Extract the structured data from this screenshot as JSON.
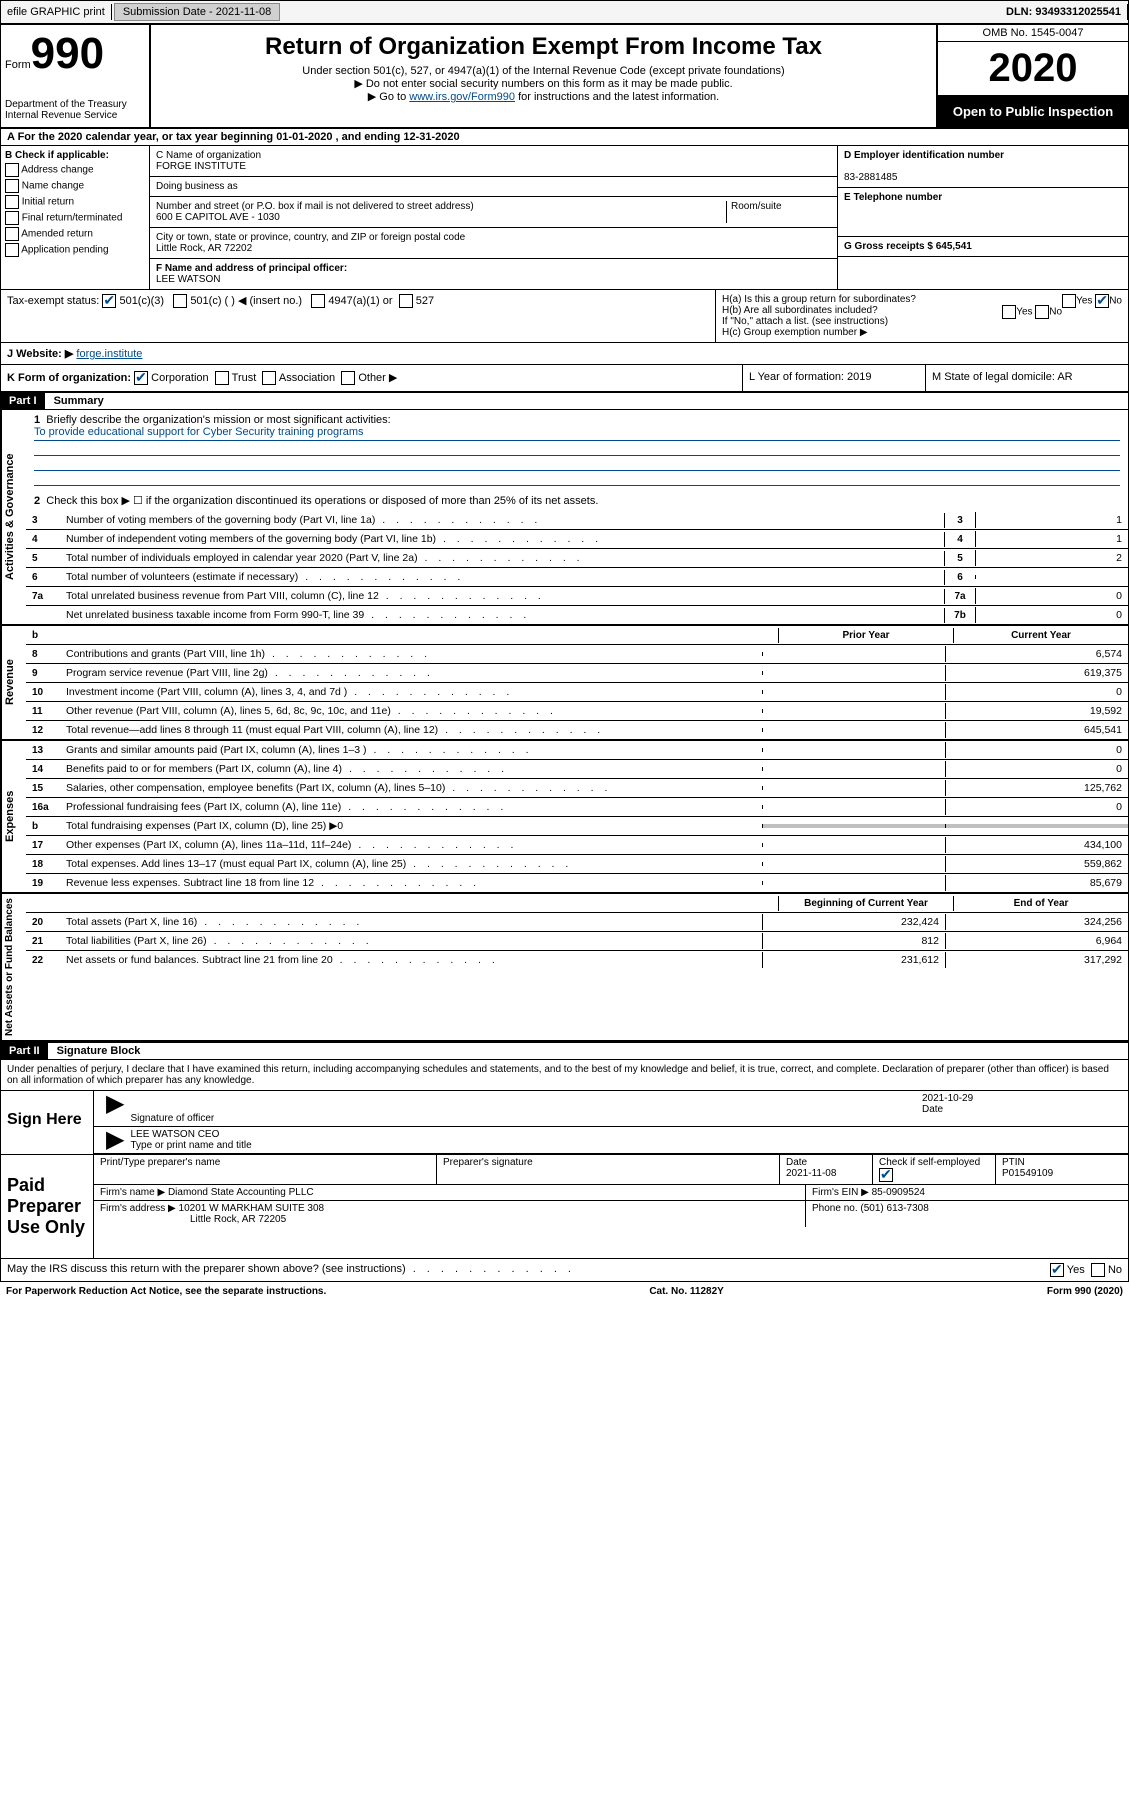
{
  "topbar": {
    "efile": "efile GRAPHIC print",
    "submission_label": "Submission Date - 2021-11-08",
    "dln_label": "DLN: 93493312025541"
  },
  "header": {
    "form_prefix": "Form",
    "form_num": "990",
    "title": "Return of Organization Exempt From Income Tax",
    "subtitle1": "Under section 501(c), 527, or 4947(a)(1) of the Internal Revenue Code (except private foundations)",
    "subtitle2": "▶ Do not enter social security numbers on this form as it may be made public.",
    "subtitle3_pre": "▶ Go to ",
    "subtitle3_link": "www.irs.gov/Form990",
    "subtitle3_post": " for instructions and the latest information.",
    "dept": "Department of the Treasury",
    "irs": "Internal Revenue Service",
    "omb": "OMB No. 1545-0047",
    "year": "2020",
    "open_public": "Open to Public Inspection"
  },
  "lineA": "A   For the 2020 calendar year, or tax year beginning 01-01-2020    , and ending 12-31-2020",
  "boxB": {
    "label": "B Check if applicable:",
    "address_change": "Address change",
    "name_change": "Name change",
    "initial_return": "Initial return",
    "final_return": "Final return/terminated",
    "amended": "Amended return",
    "pending": "Application pending"
  },
  "boxC": {
    "name_label": "C Name of organization",
    "name": "FORGE INSTITUTE",
    "dba_label": "Doing business as",
    "street_label": "Number and street (or P.O. box if mail is not delivered to street address)",
    "street": "600 E CAPITOL AVE - 1030",
    "suite_label": "Room/suite",
    "city_label": "City or town, state or province, country, and ZIP or foreign postal code",
    "city": "Little Rock, AR  72202"
  },
  "boxD": {
    "label": "D Employer identification number",
    "value": "83-2881485"
  },
  "boxE": {
    "label": "E Telephone number"
  },
  "boxG": {
    "label": "G Gross receipts $ 645,541"
  },
  "boxF": {
    "label": "F Name and address of principal officer:",
    "name": "LEE WATSON"
  },
  "boxH": {
    "a": "H(a)  Is this a group return for subordinates?",
    "b": "H(b)  Are all subordinates included?",
    "instr": "If \"No,\" attach a list. (see instructions)",
    "c": "H(c)  Group exemption number ▶",
    "yes": "Yes",
    "no": "No"
  },
  "taxExempt": {
    "label": "Tax-exempt status:",
    "c3": "501(c)(3)",
    "c": "501(c) (   ) ◀ (insert no.)",
    "a1": "4947(a)(1) or",
    "s527": "527"
  },
  "boxI": {
    "label": "J   Website: ▶",
    "value": "forge.institute"
  },
  "boxK": {
    "label": "K Form of organization:",
    "corp": "Corporation",
    "trust": "Trust",
    "assoc": "Association",
    "other": "Other ▶"
  },
  "boxL": {
    "label": "L Year of formation: 2019"
  },
  "boxM": {
    "label": "M State of legal domicile: AR"
  },
  "part1": {
    "hdr": "Part I",
    "title": "Summary",
    "q1": "Briefly describe the organization's mission or most significant activities:",
    "mission": "To provide educational support for Cyber Security training programs",
    "q2": "Check this box ▶ ☐ if the organization discontinued its operations or disposed of more than 25% of its net assets.",
    "lines": [
      {
        "n": "3",
        "d": "Number of voting members of the governing body (Part VI, line 1a)",
        "b": "3",
        "v": "1"
      },
      {
        "n": "4",
        "d": "Number of independent voting members of the governing body (Part VI, line 1b)",
        "b": "4",
        "v": "1"
      },
      {
        "n": "5",
        "d": "Total number of individuals employed in calendar year 2020 (Part V, line 2a)",
        "b": "5",
        "v": "2"
      },
      {
        "n": "6",
        "d": "Total number of volunteers (estimate if necessary)",
        "b": "6",
        "v": ""
      },
      {
        "n": "7a",
        "d": "Total unrelated business revenue from Part VIII, column (C), line 12",
        "b": "7a",
        "v": "0"
      },
      {
        "n": "",
        "d": "Net unrelated business taxable income from Form 990-T, line 39",
        "b": "7b",
        "v": "0"
      }
    ],
    "gov_label": "Activities & Governance",
    "rev_label": "Revenue",
    "exp_label": "Expenses",
    "net_label": "Net Assets or Fund Balances",
    "col_prior": "Prior Year",
    "col_current": "Current Year",
    "col_begin": "Beginning of Current Year",
    "col_end": "End of Year",
    "revenue": [
      {
        "n": "8",
        "d": "Contributions and grants (Part VIII, line 1h)",
        "p": "",
        "c": "6,574"
      },
      {
        "n": "9",
        "d": "Program service revenue (Part VIII, line 2g)",
        "p": "",
        "c": "619,375"
      },
      {
        "n": "10",
        "d": "Investment income (Part VIII, column (A), lines 3, 4, and 7d )",
        "p": "",
        "c": "0"
      },
      {
        "n": "11",
        "d": "Other revenue (Part VIII, column (A), lines 5, 6d, 8c, 9c, 10c, and 11e)",
        "p": "",
        "c": "19,592"
      },
      {
        "n": "12",
        "d": "Total revenue—add lines 8 through 11 (must equal Part VIII, column (A), line 12)",
        "p": "",
        "c": "645,541"
      }
    ],
    "expenses": [
      {
        "n": "13",
        "d": "Grants and similar amounts paid (Part IX, column (A), lines 1–3 )",
        "p": "",
        "c": "0"
      },
      {
        "n": "14",
        "d": "Benefits paid to or for members (Part IX, column (A), line 4)",
        "p": "",
        "c": "0"
      },
      {
        "n": "15",
        "d": "Salaries, other compensation, employee benefits (Part IX, column (A), lines 5–10)",
        "p": "",
        "c": "125,762"
      },
      {
        "n": "16a",
        "d": "Professional fundraising fees (Part IX, column (A), line 11e)",
        "p": "",
        "c": "0"
      },
      {
        "n": "b",
        "d": "Total fundraising expenses (Part IX, column (D), line 25) ▶0",
        "p": "shaded",
        "c": "shaded"
      },
      {
        "n": "17",
        "d": "Other expenses (Part IX, column (A), lines 11a–11d, 11f–24e)",
        "p": "",
        "c": "434,100"
      },
      {
        "n": "18",
        "d": "Total expenses. Add lines 13–17 (must equal Part IX, column (A), line 25)",
        "p": "",
        "c": "559,862"
      },
      {
        "n": "19",
        "d": "Revenue less expenses. Subtract line 18 from line 12",
        "p": "",
        "c": "85,679"
      }
    ],
    "netassets": [
      {
        "n": "20",
        "d": "Total assets (Part X, line 16)",
        "p": "232,424",
        "c": "324,256"
      },
      {
        "n": "21",
        "d": "Total liabilities (Part X, line 26)",
        "p": "812",
        "c": "6,964"
      },
      {
        "n": "22",
        "d": "Net assets or fund balances. Subtract line 21 from line 20",
        "p": "231,612",
        "c": "317,292"
      }
    ]
  },
  "part2": {
    "hdr": "Part II",
    "title": "Signature Block",
    "declaration": "Under penalties of perjury, I declare that I have examined this return, including accompanying schedules and statements, and to the best of my knowledge and belief, it is true, correct, and complete. Declaration of preparer (other than officer) is based on all information of which preparer has any knowledge."
  },
  "sign": {
    "here": "Sign Here",
    "sig_officer": "Signature of officer",
    "date_label": "Date",
    "date": "2021-10-29",
    "name_title": "LEE WATSON CEO",
    "type_label": "Type or print name and title"
  },
  "paid": {
    "label": "Paid Preparer Use Only",
    "print_label": "Print/Type preparer's name",
    "sig_label": "Preparer's signature",
    "date_label": "Date",
    "date": "2021-11-08",
    "check_label": "Check         if self-employed",
    "ptin_label": "PTIN",
    "ptin": "P01549109",
    "firm_name_label": "Firm's name      ▶",
    "firm_name": "Diamond State Accounting PLLC",
    "firm_ein_label": "Firm's EIN ▶",
    "firm_ein": "85-0909524",
    "firm_addr_label": "Firm's address ▶",
    "firm_addr1": "10201 W MARKHAM SUITE 308",
    "firm_addr2": "Little Rock, AR  72205",
    "phone_label": "Phone no.",
    "phone": "(501) 613-7308"
  },
  "discuss": {
    "q": "May the IRS discuss this return with the preparer shown above? (see instructions)",
    "yes": "Yes",
    "no": "No"
  },
  "footer": {
    "paperwork": "For Paperwork Reduction Act Notice, see the separate instructions.",
    "cat": "Cat. No. 11282Y",
    "form": "Form 990 (2020)"
  }
}
